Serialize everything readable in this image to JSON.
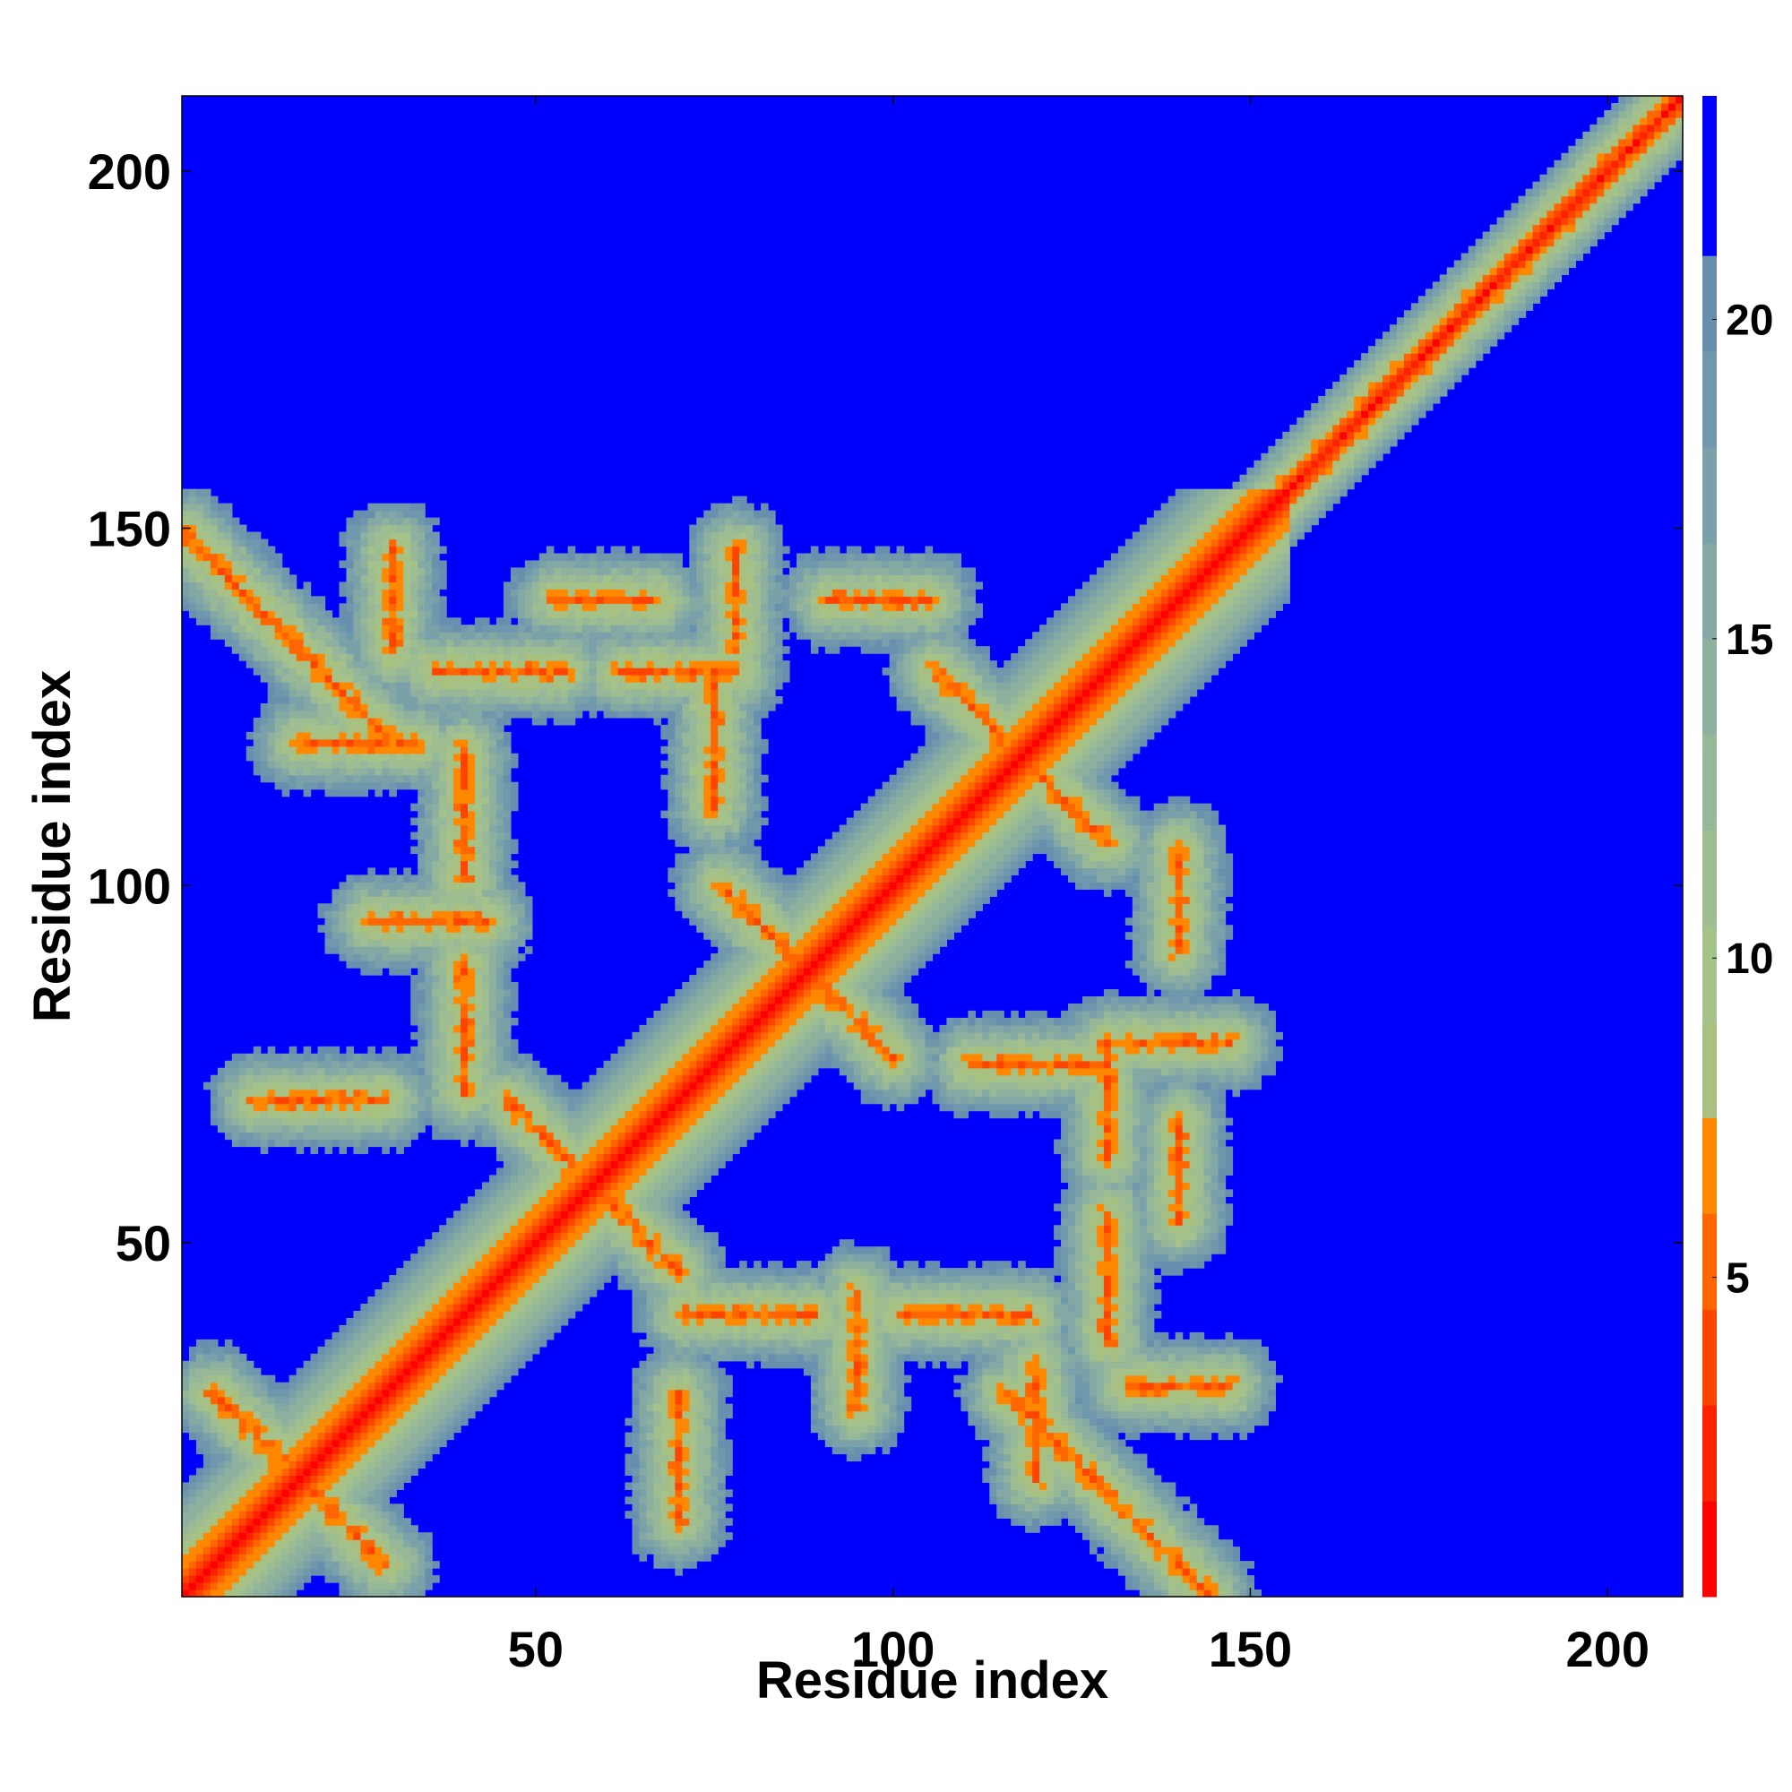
{
  "chart_data": {
    "type": "heatmap",
    "title": "",
    "xlabel": "Residue index",
    "ylabel": "Residue index",
    "xlim": [
      1,
      210
    ],
    "ylim": [
      1,
      210
    ],
    "x_ticks": [
      50,
      100,
      150,
      200
    ],
    "y_ticks": [
      50,
      100,
      150,
      200
    ],
    "colorbar": {
      "range": [
        0,
        23.5
      ],
      "ticks": [
        5,
        10,
        15,
        20
      ],
      "bands": [
        {
          "from": 0,
          "to": 1.5,
          "color": "#ff0000"
        },
        {
          "from": 1.5,
          "to": 3,
          "color": "#ff2200"
        },
        {
          "from": 3,
          "to": 4.5,
          "color": "#ff4400"
        },
        {
          "from": 4.5,
          "to": 6,
          "color": "#ff6600"
        },
        {
          "from": 6,
          "to": 7.5,
          "color": "#ff8800"
        },
        {
          "from": 7.5,
          "to": 9,
          "color": "#a8c080"
        },
        {
          "from": 9,
          "to": 10.5,
          "color": "#a4c28a"
        },
        {
          "from": 10.5,
          "to": 12,
          "color": "#9ebe92"
        },
        {
          "from": 12,
          "to": 13.5,
          "color": "#96b898"
        },
        {
          "from": 13.5,
          "to": 15,
          "color": "#8eb09e"
        },
        {
          "from": 15,
          "to": 16.5,
          "color": "#84a8a4"
        },
        {
          "from": 16.5,
          "to": 18,
          "color": "#7aa0aa"
        },
        {
          "from": 18,
          "to": 19.5,
          "color": "#7098ac"
        },
        {
          "from": 19.5,
          "to": 21,
          "color": "#6890ae"
        },
        {
          "from": 21,
          "to": 23.5,
          "color": "#0000ff"
        }
      ]
    },
    "description": "Residue-residue distance map of a 210-residue protein; red diagonal, contact bands near diagonal and off-diagonal features; region with residues > ~155 only contacts near the diagonal.",
    "contact_features": [
      {
        "kind": "diagonal",
        "from": 1,
        "to": 210
      },
      {
        "kind": "antiparallel",
        "center": [
          17,
          17
        ],
        "extent": 12
      },
      {
        "kind": "antiparallel",
        "center": [
          15,
          135
        ],
        "extent": 14
      },
      {
        "kind": "antiparallel",
        "center": [
          130,
          15
        ],
        "extent": 14
      },
      {
        "kind": "antiparallel",
        "center": [
          58,
          58
        ],
        "extent": 12
      },
      {
        "kind": "antiparallel",
        "center": [
          88,
          88
        ],
        "extent": 12
      },
      {
        "kind": "antiparallel",
        "center": [
          118,
          118
        ],
        "extent": 12
      },
      {
        "kind": "parallel",
        "start": [
          150,
          152
        ],
        "end": [
          178,
          180
        ]
      }
    ]
  }
}
